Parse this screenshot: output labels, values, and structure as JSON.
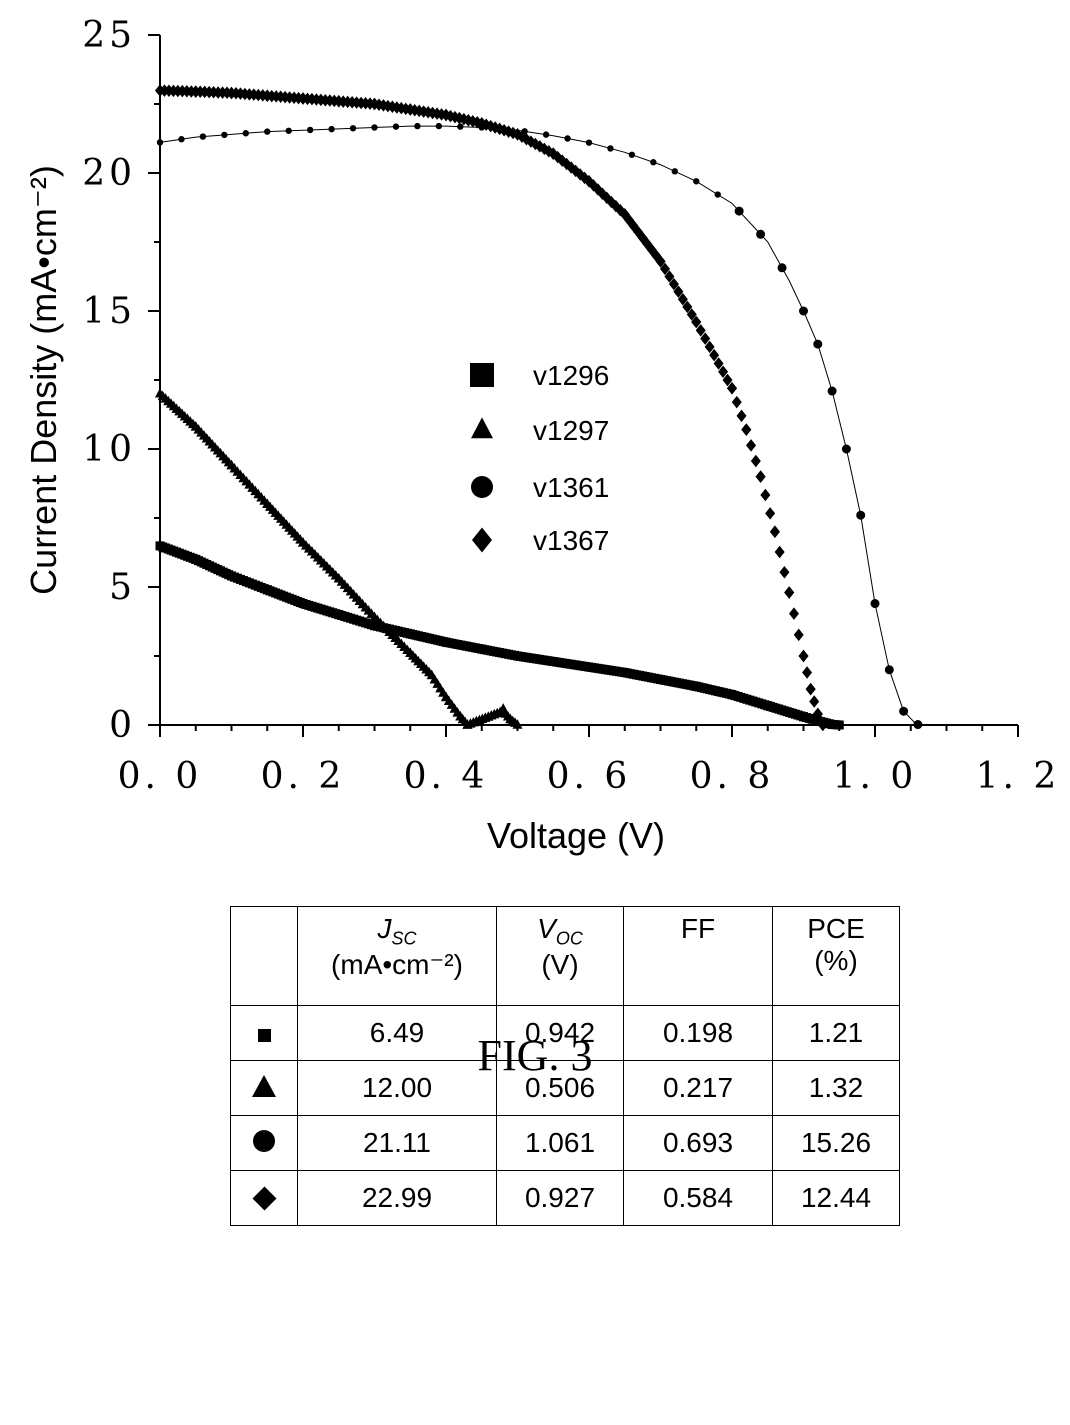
{
  "chart_data": {
    "type": "scatter",
    "title": "",
    "xlabel": "Voltage (V)",
    "ylabel": "Current Density (mA•cm⁻²)",
    "xlim": [
      0,
      1.2
    ],
    "ylim": [
      0,
      25
    ],
    "x_ticks": [
      "0. 0",
      "0. 2",
      "0. 4",
      "0. 6",
      "0. 8",
      "1. 0",
      "1. 2"
    ],
    "y_ticks": [
      "0",
      "5",
      "10",
      "15",
      "20",
      "25"
    ],
    "grid": false,
    "legend_position": "center",
    "series": [
      {
        "name": "v1296",
        "marker": "square",
        "x": [
          0.0,
          0.05,
          0.1,
          0.15,
          0.2,
          0.25,
          0.3,
          0.35,
          0.4,
          0.45,
          0.5,
          0.55,
          0.6,
          0.65,
          0.7,
          0.75,
          0.8,
          0.85,
          0.9,
          0.92,
          0.94,
          0.95
        ],
        "y": [
          6.49,
          6.0,
          5.4,
          4.9,
          4.4,
          4.0,
          3.6,
          3.3,
          3.0,
          2.75,
          2.5,
          2.3,
          2.1,
          1.9,
          1.65,
          1.4,
          1.1,
          0.7,
          0.3,
          0.15,
          0.02,
          0.0
        ]
      },
      {
        "name": "v1297",
        "marker": "triangle",
        "x": [
          0.0,
          0.05,
          0.1,
          0.15,
          0.2,
          0.25,
          0.3,
          0.35,
          0.38,
          0.4,
          0.42,
          0.43,
          0.48,
          0.49,
          0.5
        ],
        "y": [
          12.0,
          10.8,
          9.4,
          8.0,
          6.6,
          5.3,
          3.9,
          2.6,
          1.8,
          1.0,
          0.3,
          0.0,
          0.5,
          0.2,
          0.0
        ]
      },
      {
        "name": "v1361",
        "marker": "circle",
        "x": [
          0.0,
          0.05,
          0.1,
          0.15,
          0.2,
          0.25,
          0.3,
          0.35,
          0.4,
          0.45,
          0.5,
          0.55,
          0.6,
          0.65,
          0.7,
          0.75,
          0.8,
          0.85,
          0.88,
          0.9,
          0.92,
          0.94,
          0.96,
          0.98,
          1.0,
          1.02,
          1.04,
          1.055,
          1.061
        ],
        "y": [
          21.11,
          21.3,
          21.4,
          21.5,
          21.55,
          21.6,
          21.65,
          21.7,
          21.7,
          21.65,
          21.55,
          21.35,
          21.1,
          20.75,
          20.3,
          19.7,
          18.9,
          17.5,
          16.1,
          15.0,
          13.8,
          12.1,
          10.0,
          7.6,
          4.4,
          2.0,
          0.5,
          0.1,
          0.0
        ],
        "markers_x": [
          0.0,
          0.03,
          0.06,
          0.09,
          0.12,
          0.15,
          0.18,
          0.21,
          0.24,
          0.27,
          0.3,
          0.33,
          0.36,
          0.39,
          0.42,
          0.45,
          0.48,
          0.51,
          0.54,
          0.57,
          0.6,
          0.63,
          0.66,
          0.69,
          0.72,
          0.75,
          0.78,
          0.81,
          0.84,
          0.87,
          0.9,
          0.92,
          0.94,
          0.96,
          0.98,
          1.0,
          1.02,
          1.04,
          1.06
        ]
      },
      {
        "name": "v1367",
        "marker": "diamond",
        "x": [
          0.0,
          0.05,
          0.1,
          0.15,
          0.2,
          0.25,
          0.3,
          0.35,
          0.4,
          0.45,
          0.5,
          0.55,
          0.6,
          0.65,
          0.7,
          0.75,
          0.8,
          0.82,
          0.84,
          0.86,
          0.88,
          0.9,
          0.91,
          0.92,
          0.927
        ],
        "y": [
          22.99,
          22.95,
          22.9,
          22.8,
          22.7,
          22.6,
          22.5,
          22.3,
          22.1,
          21.8,
          21.4,
          20.7,
          19.7,
          18.5,
          16.8,
          14.6,
          12.2,
          10.7,
          9.0,
          7.0,
          4.8,
          2.5,
          1.3,
          0.4,
          0.0
        ]
      }
    ]
  },
  "table": {
    "header": {
      "jsc_symbol": "J",
      "jsc_sub": "SC",
      "jsc_unit": "(mA•cm⁻²)",
      "voc_symbol": "V",
      "voc_sub": "OC",
      "voc_unit": "(V)",
      "ff": "FF",
      "pce": "PCE",
      "pce_unit": "(%)"
    },
    "rows": [
      {
        "marker": "square",
        "jsc": "6.49",
        "voc": "0.942",
        "ff": "0.198",
        "pce": "1.21"
      },
      {
        "marker": "triangle",
        "jsc": "12.00",
        "voc": "0.506",
        "ff": "0.217",
        "pce": "1.32"
      },
      {
        "marker": "circle",
        "jsc": "21.11",
        "voc": "1.061",
        "ff": "0.693",
        "pce": "15.26"
      },
      {
        "marker": "diamond",
        "jsc": "22.99",
        "voc": "0.927",
        "ff": "0.584",
        "pce": "12.44"
      }
    ]
  },
  "caption": "FIG. 3"
}
